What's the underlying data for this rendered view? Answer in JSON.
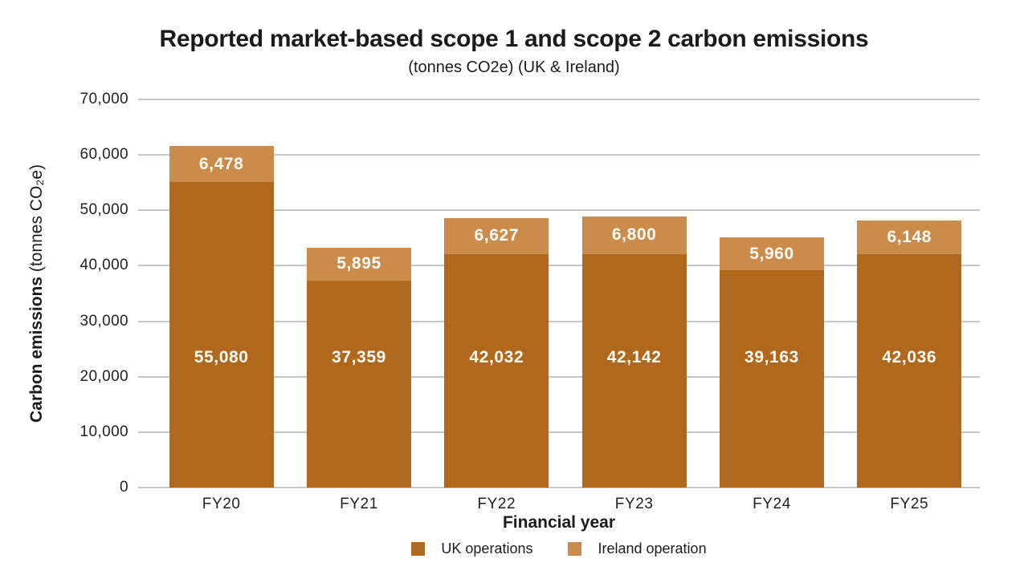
{
  "chart": {
    "title": "Reported market-based scope 1 and scope 2 carbon emissions",
    "subtitle": "(tonnes CO2e) (UK & Ireland)",
    "xlabel": "Financial year",
    "ylabel_bold": "Carbon emissions",
    "ylabel_unit": "(tonnes CO₂e)"
  },
  "chart_data": {
    "type": "bar",
    "stacked": true,
    "title": "Reported market-based scope 1 and scope 2 carbon emissions",
    "subtitle": "(tonnes CO2e) (UK & Ireland)",
    "xlabel": "Financial year",
    "ylabel": "Carbon emissions (tonnes CO₂e)",
    "categories": [
      "FY20",
      "FY21",
      "FY22",
      "FY23",
      "FY24",
      "FY25"
    ],
    "series": [
      {
        "name": "UK operations",
        "color": "#b0691c",
        "values": [
          55080,
          37359,
          42032,
          42142,
          39163,
          42036
        ]
      },
      {
        "name": "Ireland operation",
        "color": "#cb8c4b",
        "values": [
          6478,
          5895,
          6627,
          6800,
          5960,
          6148
        ]
      }
    ],
    "ylim": [
      0,
      70000
    ],
    "ytick_step": 10000,
    "yticks": [
      "0",
      "10,000",
      "20,000",
      "30,000",
      "40,000",
      "50,000",
      "60,000",
      "70,000"
    ],
    "grid": true,
    "legend_position": "bottom",
    "uk_label_center_value": 23500,
    "colors": {
      "gridline": "#c6c6c6",
      "bar_label_text": "#fdfbf7",
      "text": "#1b1b1b"
    }
  }
}
